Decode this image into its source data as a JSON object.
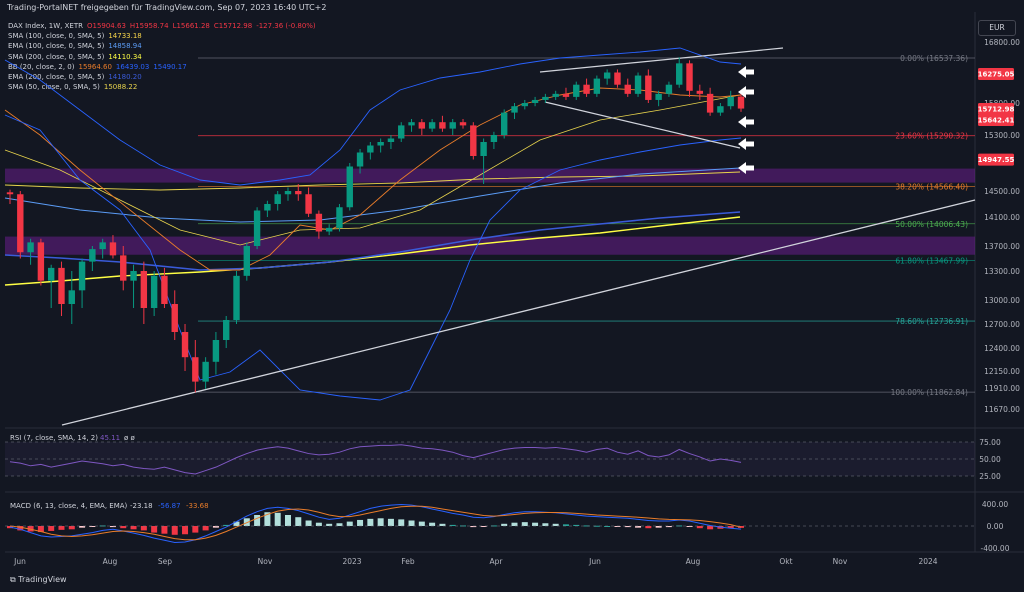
{
  "header": {
    "text": "Trading-PortalNET freigegeben für TradingView.com, Sep 07, 2023 16:40 UTC+2"
  },
  "currency": "EUR",
  "footer": {
    "brand": "TradingView"
  },
  "legend": [
    {
      "label": "DAX Index, 1W, XETR",
      "values": [
        {
          "text": "O15904.63",
          "color": "#f23645"
        },
        {
          "text": "H15958.74",
          "color": "#f23645"
        },
        {
          "text": "L15661.28",
          "color": "#f23645"
        },
        {
          "text": "C15712.98",
          "color": "#f23645"
        },
        {
          "text": "-127.36 (-0.80%)",
          "color": "#f23645"
        }
      ]
    },
    {
      "label": "SMA (100, close, 0, SMA, 5)",
      "values": [
        {
          "text": "14733.18",
          "color": "#f7d54a"
        }
      ]
    },
    {
      "label": "EMA (100, close, 0, SMA, 5)",
      "values": [
        {
          "text": "14858.94",
          "color": "#5b9cf6"
        }
      ]
    },
    {
      "label": "SMA (200, close, 0, SMA, 5)",
      "values": [
        {
          "text": "14110.34",
          "color": "#ffff44"
        }
      ]
    },
    {
      "label": "BB (20, close, 2, 0)",
      "values": [
        {
          "text": "15964.60",
          "color": "#e87c2a"
        },
        {
          "text": "16439.03",
          "color": "#2962ff"
        },
        {
          "text": "15490.17",
          "color": "#2962ff"
        }
      ]
    },
    {
      "label": "EMA (200, close, 0, SMA, 5)",
      "values": [
        {
          "text": "14180.20",
          "color": "#3a5bd9"
        }
      ]
    },
    {
      "label": "SMA (50, close, 0, SMA, 5)",
      "values": [
        {
          "text": "15088.22",
          "color": "#e8d44d"
        }
      ]
    }
  ],
  "chart_data": {
    "type": "candlestick",
    "price_axis": {
      "ticks": [
        16800,
        16275.05,
        15800,
        15712.98,
        15642.41,
        15300,
        14947.55,
        14500,
        14100,
        13700,
        13300,
        13000,
        12700,
        12400,
        12150,
        11910,
        11670
      ],
      "labels": [
        "16800.00",
        "16275.05",
        "15800.00",
        "15712.98",
        "15642.41",
        "15300.00",
        "14947.55",
        "14500.00",
        "14100.00",
        "13700.00",
        "13300.00",
        "13000.00",
        "12700.00",
        "12400.00",
        "12150.00",
        "11910.00",
        "11670.00"
      ]
    },
    "price_tags": [
      {
        "value": 16275.05,
        "label": "16275.05",
        "color": "#f23645"
      },
      {
        "value": 15712.98,
        "label": "15712.98",
        "color": "#f23645"
      },
      {
        "value": 15642.41,
        "label": "15642.41",
        "color": "#f23645"
      },
      {
        "value": 14947.55,
        "label": "14947.55",
        "color": "#f23645"
      }
    ],
    "time_axis": [
      "Jun",
      "Aug",
      "Sep",
      "Nov",
      "2023",
      "Feb",
      "Apr",
      "Jun",
      "Aug",
      "Okt",
      "Nov",
      "2024"
    ],
    "fib_levels": [
      {
        "label": "0.00% (16537.36)",
        "value": 16537.36,
        "color": "#787b86"
      },
      {
        "label": "23.60% (15290.32)",
        "value": 15290.32,
        "color": "#f23645"
      },
      {
        "label": "38.20% (14566.40)",
        "value": 14566.4,
        "color": "#e87c2a"
      },
      {
        "label": "50.00% (14006.43)",
        "value": 14006.43,
        "color": "#4caf50"
      },
      {
        "label": "61.80% (13467.99)",
        "value": 13467.99,
        "color": "#089981"
      },
      {
        "label": "78.60% (12736.91)",
        "value": 12736.91,
        "color": "#26a69a"
      },
      {
        "label": "100.00% (11862.84)",
        "value": 11862.84,
        "color": "#787b86"
      }
    ],
    "zones": [
      {
        "from": 14620,
        "to": 14820,
        "color": "#7b1fa2"
      },
      {
        "from": 13560,
        "to": 13830,
        "color": "#7b1fa2"
      }
    ],
    "candles": [
      [
        14480,
        14520,
        14300,
        14450
      ],
      [
        14450,
        14500,
        13500,
        13600
      ],
      [
        13600,
        13800,
        13400,
        13750
      ],
      [
        13750,
        13800,
        13150,
        13200
      ],
      [
        13200,
        13400,
        12900,
        13350
      ],
      [
        13350,
        13450,
        12800,
        12950
      ],
      [
        12950,
        13300,
        12700,
        13100
      ],
      [
        13100,
        13500,
        12900,
        13450
      ],
      [
        13450,
        13700,
        13300,
        13650
      ],
      [
        13650,
        13800,
        13500,
        13750
      ],
      [
        13750,
        13850,
        13500,
        13550
      ],
      [
        13550,
        13700,
        13100,
        13200
      ],
      [
        13200,
        13400,
        12900,
        13300
      ],
      [
        13300,
        13450,
        12700,
        12900
      ],
      [
        12900,
        13300,
        12800,
        13250
      ],
      [
        13250,
        13350,
        12900,
        12950
      ],
      [
        12950,
        13100,
        12500,
        12600
      ],
      [
        12600,
        12700,
        12150,
        12300
      ],
      [
        12300,
        12500,
        11860,
        12000
      ],
      [
        12000,
        12300,
        11900,
        12250
      ],
      [
        12250,
        12600,
        12100,
        12500
      ],
      [
        12500,
        12800,
        12400,
        12750
      ],
      [
        12750,
        13300,
        12700,
        13250
      ],
      [
        13250,
        13750,
        13200,
        13700
      ],
      [
        13700,
        14250,
        13650,
        14200
      ],
      [
        14200,
        14350,
        14100,
        14300
      ],
      [
        14300,
        14500,
        14200,
        14450
      ],
      [
        14450,
        14550,
        14350,
        14500
      ],
      [
        14500,
        14600,
        14350,
        14450
      ],
      [
        14450,
        14550,
        14100,
        14150
      ],
      [
        14150,
        14200,
        13800,
        13900
      ],
      [
        13900,
        14000,
        13850,
        13950
      ],
      [
        13950,
        14300,
        13900,
        14250
      ],
      [
        14250,
        14900,
        14200,
        14850
      ],
      [
        14850,
        15100,
        14750,
        15050
      ],
      [
        15050,
        15200,
        14950,
        15150
      ],
      [
        15150,
        15250,
        15050,
        15200
      ],
      [
        15200,
        15300,
        15100,
        15250
      ],
      [
        15250,
        15500,
        15200,
        15450
      ],
      [
        15450,
        15550,
        15350,
        15500
      ],
      [
        15500,
        15550,
        15300,
        15400
      ],
      [
        15400,
        15550,
        15350,
        15500
      ],
      [
        15500,
        15600,
        15350,
        15400
      ],
      [
        15400,
        15550,
        15300,
        15500
      ],
      [
        15500,
        15550,
        15400,
        15450
      ],
      [
        15450,
        15500,
        14950,
        15000
      ],
      [
        15000,
        15250,
        14600,
        15200
      ],
      [
        15200,
        15350,
        15100,
        15300
      ],
      [
        15300,
        15700,
        15250,
        15650
      ],
      [
        15650,
        15800,
        15550,
        15750
      ],
      [
        15750,
        15850,
        15700,
        15800
      ],
      [
        15800,
        15900,
        15750,
        15850
      ],
      [
        15850,
        15950,
        15800,
        15900
      ],
      [
        15900,
        16000,
        15850,
        15950
      ],
      [
        15950,
        16050,
        15850,
        15900
      ],
      [
        15900,
        16150,
        15850,
        16100
      ],
      [
        16100,
        16200,
        15900,
        15950
      ],
      [
        15950,
        16250,
        15900,
        16200
      ],
      [
        16200,
        16350,
        16100,
        16300
      ],
      [
        16300,
        16350,
        16050,
        16100
      ],
      [
        16100,
        16200,
        15900,
        15950
      ],
      [
        15950,
        16300,
        15900,
        16250
      ],
      [
        16250,
        16350,
        15800,
        15850
      ],
      [
        15850,
        16000,
        15750,
        15950
      ],
      [
        15950,
        16150,
        15900,
        16100
      ],
      [
        16100,
        16550,
        16050,
        16450
      ],
      [
        16450,
        16500,
        15900,
        16000
      ],
      [
        16000,
        16100,
        15850,
        15950
      ],
      [
        15950,
        16050,
        15600,
        15650
      ],
      [
        15650,
        15800,
        15600,
        15750
      ],
      [
        15750,
        16000,
        15700,
        15900
      ],
      [
        15904.63,
        15958.74,
        15661.28,
        15712.98
      ]
    ],
    "rsi": {
      "label": "RSI (7, close, SMA, 14, 2)",
      "value": "45.11",
      "extra": "ø ø",
      "axis": [
        "75.00",
        "50.00",
        "25.00"
      ],
      "values": [
        46,
        44,
        40,
        42,
        38,
        41,
        44,
        47,
        45,
        43,
        40,
        42,
        38,
        36,
        35,
        38,
        34,
        30,
        28,
        33,
        38,
        45,
        52,
        58,
        63,
        66,
        68,
        66,
        62,
        58,
        56,
        57,
        60,
        65,
        68,
        69,
        70,
        70,
        71,
        69,
        66,
        65,
        63,
        60,
        55,
        52,
        56,
        60,
        64,
        66,
        67,
        67,
        66,
        67,
        65,
        63,
        60,
        64,
        66,
        60,
        57,
        62,
        55,
        53,
        56,
        64,
        58,
        53,
        47,
        50,
        48,
        45
      ]
    },
    "macd": {
      "label": "MACD (6, 13, close, 4, EMA, EMA)",
      "values_text": [
        "-23.18",
        "-56.87",
        "-33.68"
      ],
      "value_colors": [
        "#d1d4dc",
        "#2962ff",
        "#e87c2a"
      ],
      "axis": [
        "400.00",
        "0.00",
        "-400.00"
      ],
      "hist": [
        -40,
        -80,
        -100,
        -110,
        -90,
        -70,
        -60,
        -30,
        -10,
        10,
        -20,
        -40,
        -60,
        -80,
        -120,
        -140,
        -160,
        -150,
        -120,
        -80,
        -30,
        20,
        80,
        140,
        200,
        250,
        240,
        200,
        160,
        100,
        60,
        40,
        50,
        80,
        110,
        130,
        140,
        130,
        120,
        100,
        80,
        60,
        40,
        20,
        10,
        -20,
        -10,
        10,
        40,
        60,
        70,
        60,
        50,
        40,
        30,
        20,
        10,
        5,
        0,
        -10,
        -20,
        -30,
        -40,
        -30,
        -20,
        10,
        -10,
        -40,
        -60,
        -50,
        -40,
        -33.68
      ],
      "macd_line": [
        -20,
        -60,
        -120,
        -180,
        -200,
        -190,
        -180,
        -150,
        -120,
        -80,
        -60,
        -90,
        -130,
        -170,
        -220,
        -260,
        -300,
        -290,
        -250,
        -180,
        -100,
        -20,
        80,
        180,
        260,
        320,
        340,
        320,
        280,
        220,
        160,
        120,
        140,
        200,
        260,
        320,
        360,
        380,
        390,
        380,
        350,
        310,
        270,
        230,
        200,
        160,
        150,
        170,
        210,
        240,
        260,
        260,
        250,
        240,
        220,
        200,
        180,
        170,
        160,
        150,
        140,
        120,
        100,
        90,
        90,
        110,
        90,
        50,
        10,
        -20,
        -40,
        -56.87
      ],
      "signal_line": [
        0,
        -20,
        -60,
        -100,
        -150,
        -180,
        -190,
        -180,
        -160,
        -130,
        -100,
        -90,
        -100,
        -120,
        -150,
        -190,
        -230,
        -250,
        -250,
        -220,
        -170,
        -100,
        -20,
        60,
        140,
        210,
        270,
        300,
        310,
        290,
        250,
        200,
        170,
        170,
        200,
        240,
        280,
        320,
        350,
        360,
        360,
        340,
        310,
        280,
        250,
        220,
        190,
        180,
        190,
        210,
        230,
        240,
        245,
        245,
        240,
        230,
        215,
        200,
        190,
        180,
        170,
        160,
        145,
        130,
        120,
        115,
        112,
        100,
        80,
        55,
        25,
        -23.18
      ]
    }
  },
  "overlays": {
    "arrows_count_text": ""
  }
}
